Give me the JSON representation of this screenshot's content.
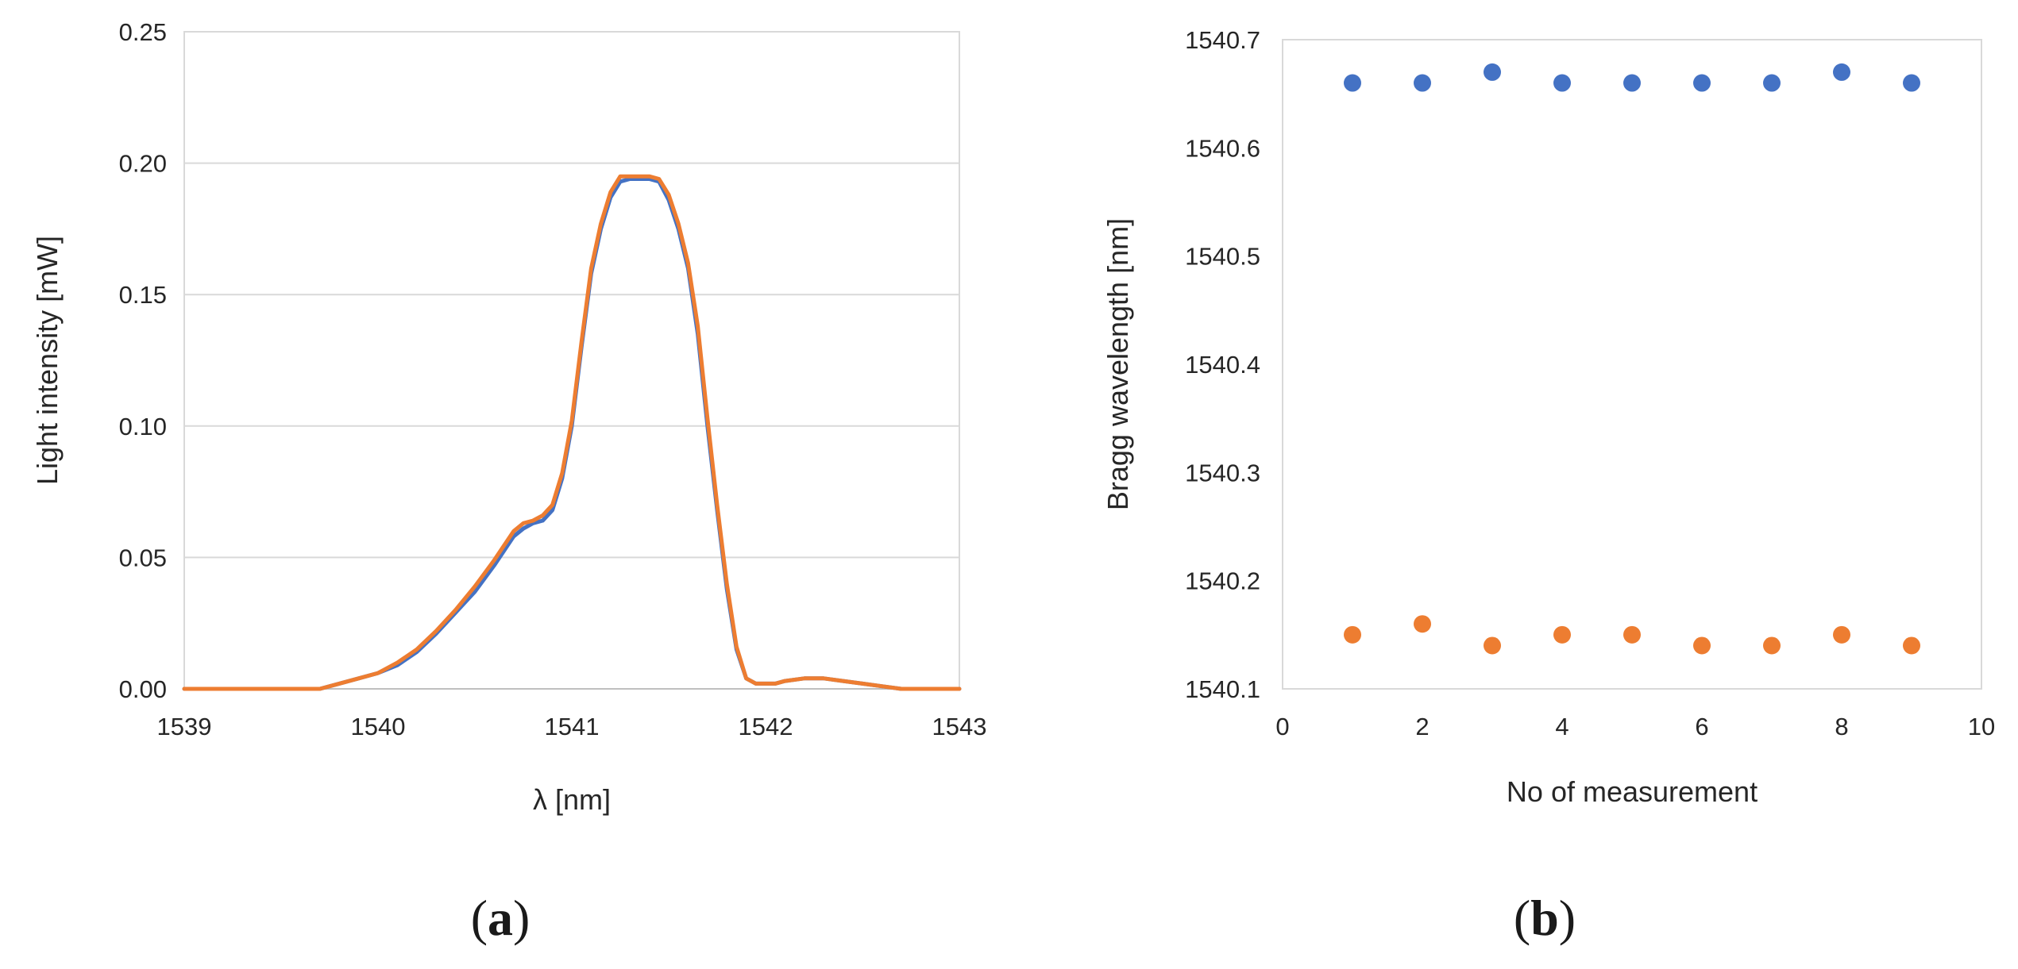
{
  "colors": {
    "series_blue": "#4472C4",
    "series_orange": "#ED7D31",
    "grid": "#d9d9d9",
    "text": "#262626"
  },
  "panels": {
    "a": {
      "label_open": "(",
      "label_letter": "a",
      "label_close": ")"
    },
    "b": {
      "label_open": "(",
      "label_letter": "b",
      "label_close": ")"
    }
  },
  "chart_data": [
    {
      "type": "line",
      "panel": "a",
      "xlabel": "λ [nm]",
      "ylabel": "Light intensity [mW]",
      "xlim": [
        1539,
        1543
      ],
      "ylim": [
        0,
        0.25
      ],
      "xticks": [
        1539,
        1540,
        1541,
        1542,
        1543
      ],
      "xtick_labels": [
        "1539",
        "1540",
        "1541",
        "1542",
        "1543"
      ],
      "yticks": [
        0,
        0.05,
        0.1,
        0.15,
        0.2,
        0.25
      ],
      "ytick_labels": [
        "0.00",
        "0.05",
        "0.10",
        "0.15",
        "0.20",
        "0.25"
      ],
      "grid": "horizontal",
      "legend": "none",
      "series": [
        {
          "color": "#4472C4",
          "x": [
            1539.0,
            1539.5,
            1539.7,
            1539.8,
            1539.9,
            1540.0,
            1540.1,
            1540.2,
            1540.3,
            1540.4,
            1540.5,
            1540.6,
            1540.7,
            1540.75,
            1540.8,
            1540.85,
            1540.9,
            1540.95,
            1541.0,
            1541.05,
            1541.1,
            1541.15,
            1541.2,
            1541.25,
            1541.3,
            1541.35,
            1541.4,
            1541.45,
            1541.5,
            1541.55,
            1541.6,
            1541.65,
            1541.7,
            1541.75,
            1541.8,
            1541.85,
            1541.9,
            1541.95,
            1542.0,
            1542.05,
            1542.1,
            1542.2,
            1542.3,
            1542.4,
            1542.5,
            1542.6,
            1542.7,
            1542.8,
            1543.0
          ],
          "y": [
            0.0,
            0.0,
            0.0,
            0.002,
            0.004,
            0.006,
            0.009,
            0.014,
            0.021,
            0.029,
            0.037,
            0.047,
            0.058,
            0.061,
            0.063,
            0.064,
            0.068,
            0.08,
            0.1,
            0.13,
            0.158,
            0.175,
            0.187,
            0.193,
            0.194,
            0.194,
            0.194,
            0.193,
            0.186,
            0.175,
            0.16,
            0.135,
            0.1,
            0.068,
            0.038,
            0.015,
            0.004,
            0.002,
            0.002,
            0.002,
            0.003,
            0.004,
            0.004,
            0.003,
            0.002,
            0.001,
            0.0,
            0.0,
            0.0
          ]
        },
        {
          "color": "#ED7D31",
          "x": [
            1539.0,
            1539.5,
            1539.7,
            1539.8,
            1539.9,
            1540.0,
            1540.1,
            1540.2,
            1540.3,
            1540.4,
            1540.5,
            1540.6,
            1540.7,
            1540.75,
            1540.8,
            1540.85,
            1540.9,
            1540.95,
            1541.0,
            1541.05,
            1541.1,
            1541.15,
            1541.2,
            1541.25,
            1541.3,
            1541.35,
            1541.4,
            1541.45,
            1541.5,
            1541.55,
            1541.6,
            1541.65,
            1541.7,
            1541.75,
            1541.8,
            1541.85,
            1541.9,
            1541.95,
            1542.0,
            1542.05,
            1542.1,
            1542.2,
            1542.3,
            1542.4,
            1542.5,
            1542.6,
            1542.7,
            1542.8,
            1543.0
          ],
          "y": [
            0.0,
            0.0,
            0.0,
            0.002,
            0.004,
            0.006,
            0.01,
            0.015,
            0.022,
            0.03,
            0.039,
            0.049,
            0.06,
            0.063,
            0.064,
            0.066,
            0.07,
            0.082,
            0.102,
            0.132,
            0.16,
            0.177,
            0.189,
            0.195,
            0.195,
            0.195,
            0.195,
            0.194,
            0.188,
            0.177,
            0.162,
            0.138,
            0.103,
            0.07,
            0.04,
            0.016,
            0.004,
            0.002,
            0.002,
            0.002,
            0.003,
            0.004,
            0.004,
            0.003,
            0.002,
            0.001,
            0.0,
            0.0,
            0.0
          ]
        }
      ]
    },
    {
      "type": "scatter",
      "panel": "b",
      "xlabel": "No of measurement",
      "ylabel": "Bragg wavelength [nm]",
      "xlim": [
        0,
        10
      ],
      "ylim": [
        1540.1,
        1540.7
      ],
      "xticks": [
        0,
        2,
        4,
        6,
        8,
        10
      ],
      "xtick_labels": [
        "0",
        "2",
        "4",
        "6",
        "8",
        "10"
      ],
      "yticks": [
        1540.1,
        1540.2,
        1540.3,
        1540.4,
        1540.5,
        1540.6,
        1540.7
      ],
      "ytick_labels": [
        "1540.1",
        "1540.2",
        "1540.3",
        "1540.4",
        "1540.5",
        "1540.6",
        "1540.7"
      ],
      "grid": "none",
      "legend": "none",
      "series": [
        {
          "color": "#4472C4",
          "x": [
            1,
            2,
            3,
            4,
            5,
            6,
            7,
            8,
            9
          ],
          "y": [
            1540.66,
            1540.66,
            1540.67,
            1540.66,
            1540.66,
            1540.66,
            1540.66,
            1540.67,
            1540.66
          ]
        },
        {
          "color": "#ED7D31",
          "x": [
            1,
            2,
            3,
            4,
            5,
            6,
            7,
            8,
            9
          ],
          "y": [
            1540.15,
            1540.16,
            1540.14,
            1540.15,
            1540.15,
            1540.14,
            1540.14,
            1540.15,
            1540.14
          ]
        }
      ]
    }
  ]
}
